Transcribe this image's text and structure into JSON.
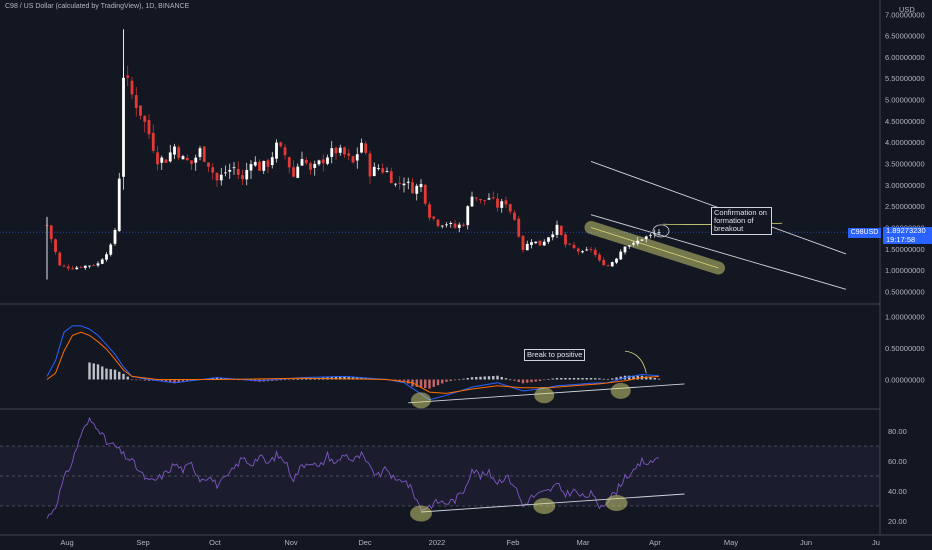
{
  "header": {
    "title": "C98 / US Dollar (calculated by TradingView), 1D, BINANCE"
  },
  "price_axis": {
    "unit": "USD"
  },
  "badges": {
    "symbol": "C98USD",
    "price": "1.89273230",
    "countdown": "19:17:58"
  },
  "annotations": {
    "confirmation": [
      "Confirmation on",
      "formation of",
      "breakout"
    ],
    "break": "Break to positive"
  },
  "colors": {
    "background": "#131722",
    "up": "#ffffff",
    "down": "#e53935",
    "highlight": "#d8d878",
    "macd": "#2962ff",
    "signal": "#ff6d00",
    "rsi": "#7e57c2",
    "price_line": "#2962ff"
  },
  "chart_data": [
    {
      "type": "candlestick",
      "panel": "price",
      "y_ticks": [
        "7.00000000",
        "6.50000000",
        "6.00000000",
        "5.50000000",
        "5.00000000",
        "4.50000000",
        "4.00000000",
        "3.50000000",
        "3.00000000",
        "2.50000000",
        "2.00000000",
        "1.50000000",
        "1.00000000",
        "0.50000000"
      ],
      "ylim": [
        0.3,
        7.1
      ],
      "x_ticks": [
        "Aug",
        "Sep",
        "Oct",
        "Nov",
        "Dec",
        "2022",
        "Feb",
        "Mar",
        "Apr",
        "May",
        "Jun",
        "Ju"
      ],
      "trendline_upper": [
        [
          128,
          3.55
        ],
        [
          188,
          1.38
        ]
      ],
      "trendline_lower": [
        [
          128,
          2.3
        ],
        [
          188,
          0.55
        ]
      ],
      "highlight_support": [
        [
          128,
          2.0
        ],
        [
          158,
          1.05
        ]
      ],
      "projection": [
        [
          165,
          2.27
        ],
        [
          173,
          2.27
        ]
      ],
      "last_price": 1.89,
      "close_path": [
        [
          0,
          2.05
        ],
        [
          3,
          1.1
        ],
        [
          6,
          1.05
        ],
        [
          9,
          1.1
        ],
        [
          12,
          1.15
        ],
        [
          15,
          1.55
        ],
        [
          16,
          1.95
        ],
        [
          17,
          3.2
        ],
        [
          18,
          5.6
        ],
        [
          20,
          5.1
        ],
        [
          22,
          4.7
        ],
        [
          24,
          4.2
        ],
        [
          26,
          3.6
        ],
        [
          28,
          3.6
        ],
        [
          30,
          3.9
        ],
        [
          32,
          3.6
        ],
        [
          34,
          3.5
        ],
        [
          36,
          3.8
        ],
        [
          38,
          3.5
        ],
        [
          40,
          3.1
        ],
        [
          42,
          3.3
        ],
        [
          44,
          3.4
        ],
        [
          46,
          3.1
        ],
        [
          48,
          3.6
        ],
        [
          50,
          3.4
        ],
        [
          52,
          3.5
        ],
        [
          54,
          3.9
        ],
        [
          56,
          3.7
        ],
        [
          58,
          3.2
        ],
        [
          60,
          3.7
        ],
        [
          62,
          3.3
        ],
        [
          64,
          3.5
        ],
        [
          66,
          3.7
        ],
        [
          68,
          3.8
        ],
        [
          70,
          3.7
        ],
        [
          72,
          3.5
        ],
        [
          74,
          4.0
        ],
        [
          76,
          3.3
        ],
        [
          78,
          3.4
        ],
        [
          80,
          3.3
        ],
        [
          82,
          3.0
        ],
        [
          84,
          3.1
        ],
        [
          86,
          2.9
        ],
        [
          88,
          3.0
        ],
        [
          90,
          2.3
        ],
        [
          92,
          2.1
        ],
        [
          94,
          2.1
        ],
        [
          96,
          2.0
        ],
        [
          98,
          2.1
        ],
        [
          100,
          2.8
        ],
        [
          102,
          2.6
        ],
        [
          104,
          2.7
        ],
        [
          106,
          2.5
        ],
        [
          108,
          2.6
        ],
        [
          110,
          2.2
        ],
        [
          112,
          1.5
        ],
        [
          114,
          1.7
        ],
        [
          116,
          1.6
        ],
        [
          118,
          1.8
        ],
        [
          120,
          2.0
        ],
        [
          122,
          1.6
        ],
        [
          124,
          1.5
        ],
        [
          126,
          1.4
        ],
        [
          128,
          1.5
        ],
        [
          130,
          1.2
        ],
        [
          132,
          1.1
        ],
        [
          134,
          1.3
        ],
        [
          136,
          1.6
        ],
        [
          138,
          1.6
        ],
        [
          140,
          1.75
        ],
        [
          142,
          1.8
        ],
        [
          144,
          1.9
        ]
      ]
    },
    {
      "type": "bar+line",
      "panel": "macd",
      "y_ticks": [
        "1.00000000",
        "0.50000000",
        "0.00000000"
      ],
      "ylim": [
        -0.42,
        1.15
      ],
      "series": [
        {
          "values": [
            [
              0,
              0.05
            ],
            [
              2,
              0.3
            ],
            [
              4,
              0.75
            ],
            [
              6,
              0.85
            ],
            [
              8,
              0.85
            ],
            [
              10,
              0.8
            ],
            [
              12,
              0.7
            ],
            [
              14,
              0.55
            ],
            [
              16,
              0.4
            ],
            [
              18,
              0.2
            ],
            [
              20,
              0.05
            ],
            [
              24,
              0.0
            ],
            [
              30,
              -0.05
            ],
            [
              40,
              0.03
            ],
            [
              50,
              -0.02
            ],
            [
              60,
              0.03
            ],
            [
              70,
              0.05
            ],
            [
              80,
              0.0
            ],
            [
              84,
              -0.05
            ],
            [
              86,
              -0.14
            ],
            [
              90,
              -0.32
            ],
            [
              94,
              -0.25
            ],
            [
              100,
              -0.12
            ],
            [
              106,
              -0.05
            ],
            [
              112,
              -0.18
            ],
            [
              116,
              -0.15
            ],
            [
              120,
              -0.1
            ],
            [
              124,
              -0.08
            ],
            [
              128,
              -0.06
            ],
            [
              132,
              -0.05
            ],
            [
              136,
              0.03
            ],
            [
              140,
              0.08
            ],
            [
              144,
              0.06
            ]
          ]
        },
        {
          "values": [
            [
              0,
              0.0
            ],
            [
              2,
              0.1
            ],
            [
              4,
              0.45
            ],
            [
              6,
              0.7
            ],
            [
              8,
              0.75
            ],
            [
              10,
              0.7
            ],
            [
              12,
              0.6
            ],
            [
              14,
              0.48
            ],
            [
              16,
              0.32
            ],
            [
              18,
              0.15
            ],
            [
              20,
              0.05
            ],
            [
              26,
              0.0
            ],
            [
              40,
              0.0
            ],
            [
              60,
              0.02
            ],
            [
              80,
              0.0
            ],
            [
              86,
              -0.05
            ],
            [
              90,
              -0.2
            ],
            [
              94,
              -0.22
            ],
            [
              100,
              -0.15
            ],
            [
              106,
              -0.1
            ],
            [
              112,
              -0.13
            ],
            [
              118,
              -0.13
            ],
            [
              124,
              -0.1
            ],
            [
              130,
              -0.07
            ],
            [
              136,
              -0.02
            ],
            [
              140,
              0.03
            ],
            [
              144,
              0.05
            ]
          ]
        }
      ],
      "histogram_note": "MACD histogram below series lines",
      "trendline": [
        [
          85,
          -0.37
        ],
        [
          150,
          -0.07
        ]
      ],
      "circles": [
        [
          88,
          -0.33
        ],
        [
          117,
          -0.25
        ],
        [
          135,
          -0.18
        ]
      ]
    },
    {
      "type": "line",
      "panel": "rsi",
      "y_ticks": [
        "80.00",
        "60.00",
        "40.00",
        "20.00"
      ],
      "ylim": [
        14,
        92
      ],
      "band": [
        30,
        70
      ],
      "midline": 50,
      "values": [
        [
          0,
          22
        ],
        [
          2,
          30
        ],
        [
          4,
          48
        ],
        [
          6,
          60
        ],
        [
          8,
          78
        ],
        [
          10,
          87
        ],
        [
          12,
          83
        ],
        [
          14,
          72
        ],
        [
          16,
          70
        ],
        [
          18,
          64
        ],
        [
          20,
          60
        ],
        [
          22,
          52
        ],
        [
          24,
          46
        ],
        [
          26,
          48
        ],
        [
          28,
          52
        ],
        [
          30,
          58
        ],
        [
          32,
          54
        ],
        [
          34,
          58
        ],
        [
          36,
          48
        ],
        [
          38,
          50
        ],
        [
          40,
          44
        ],
        [
          42,
          48
        ],
        [
          44,
          55
        ],
        [
          46,
          62
        ],
        [
          48,
          58
        ],
        [
          50,
          63
        ],
        [
          52,
          58
        ],
        [
          54,
          64
        ],
        [
          56,
          60
        ],
        [
          58,
          48
        ],
        [
          60,
          57
        ],
        [
          62,
          60
        ],
        [
          64,
          55
        ],
        [
          66,
          64
        ],
        [
          68,
          58
        ],
        [
          70,
          65
        ],
        [
          72,
          60
        ],
        [
          74,
          64
        ],
        [
          76,
          55
        ],
        [
          78,
          50
        ],
        [
          80,
          55
        ],
        [
          82,
          46
        ],
        [
          84,
          48
        ],
        [
          86,
          40
        ],
        [
          88,
          28
        ],
        [
          90,
          30
        ],
        [
          92,
          33
        ],
        [
          94,
          32
        ],
        [
          96,
          34
        ],
        [
          98,
          40
        ],
        [
          100,
          55
        ],
        [
          102,
          50
        ],
        [
          104,
          52
        ],
        [
          106,
          46
        ],
        [
          108,
          50
        ],
        [
          110,
          44
        ],
        [
          112,
          30
        ],
        [
          114,
          36
        ],
        [
          116,
          38
        ],
        [
          118,
          40
        ],
        [
          120,
          44
        ],
        [
          122,
          38
        ],
        [
          124,
          40
        ],
        [
          126,
          36
        ],
        [
          128,
          38
        ],
        [
          130,
          30
        ],
        [
          132,
          34
        ],
        [
          134,
          40
        ],
        [
          136,
          50
        ],
        [
          138,
          52
        ],
        [
          140,
          60
        ],
        [
          142,
          58
        ],
        [
          144,
          64
        ]
      ],
      "trendline": [
        [
          88,
          26
        ],
        [
          150,
          38
        ]
      ],
      "circles": [
        [
          88,
          25
        ],
        [
          117,
          30
        ],
        [
          134,
          32
        ]
      ]
    }
  ]
}
